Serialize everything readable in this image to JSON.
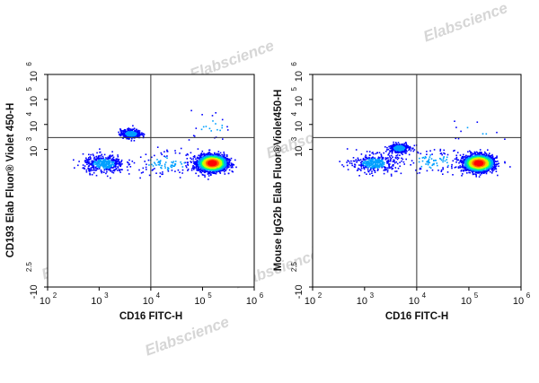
{
  "watermark": "Elabscience",
  "chart_data": [
    {
      "type": "scatter",
      "xlabel": "CD16 FITC-H",
      "ylabel": "CD193 Elab Fluor® Violet 450-H",
      "xscale": "biexponential",
      "yscale": "biexponential",
      "xlim": [
        100,
        1000000
      ],
      "ylim": [
        -316,
        1000000
      ],
      "xticks": [
        {
          "base": "10",
          "exp": "2",
          "value": 100
        },
        {
          "base": "10",
          "exp": "3",
          "value": 1000
        },
        {
          "base": "10",
          "exp": "4",
          "value": 10000
        },
        {
          "base": "10",
          "exp": "5",
          "value": 100000
        },
        {
          "base": "10",
          "exp": "6",
          "value": 1000000
        }
      ],
      "yticks": [
        {
          "base": "10",
          "exp": "6",
          "value": 1000000
        },
        {
          "base": "10",
          "exp": "5",
          "value": 100000
        },
        {
          "base": "10",
          "exp": "4",
          "value": 10000
        },
        {
          "base": "10",
          "exp": "3",
          "value": 1000
        },
        {
          "base": "-10",
          "exp": "2.5",
          "value": -316
        }
      ],
      "quadrant_gate": {
        "x": 10000,
        "y": 3000
      },
      "populations": [
        {
          "x": 150000,
          "y": 300,
          "count": 2200,
          "spread": [
            0.14,
            0.16
          ],
          "note": "dense"
        },
        {
          "x": 4000,
          "y": 4500,
          "count": 360,
          "spread": [
            0.1,
            0.09
          ]
        },
        {
          "x": 1200,
          "y": 280,
          "count": 420,
          "spread": [
            0.2,
            0.18
          ]
        },
        {
          "x": 20000,
          "y": 300,
          "count": 120,
          "spread": [
            0.35,
            0.25
          ]
        },
        {
          "x": 150000,
          "y": 8000,
          "count": 25,
          "spread": [
            0.25,
            0.35
          ]
        }
      ],
      "density_colors": [
        "#0000ff",
        "#00a0ff",
        "#00ff80",
        "#c8ff00",
        "#ffd000",
        "#ff6000",
        "#ff0000"
      ]
    },
    {
      "type": "scatter",
      "xlabel": "CD16 FITC-H",
      "ylabel": "Mouse IgG2b Elab Fluor®Violet450-H",
      "xscale": "biexponential",
      "yscale": "biexponential",
      "xlim": [
        100,
        1000000
      ],
      "ylim": [
        -316,
        1000000
      ],
      "xticks": [
        {
          "base": "10",
          "exp": "2",
          "value": 100
        },
        {
          "base": "10",
          "exp": "3",
          "value": 1000
        },
        {
          "base": "10",
          "exp": "4",
          "value": 10000
        },
        {
          "base": "10",
          "exp": "5",
          "value": 100000
        },
        {
          "base": "10",
          "exp": "6",
          "value": 1000000
        }
      ],
      "yticks": [
        {
          "base": "10",
          "exp": "6",
          "value": 1000000
        },
        {
          "base": "10",
          "exp": "5",
          "value": 100000
        },
        {
          "base": "10",
          "exp": "4",
          "value": 10000
        },
        {
          "base": "10",
          "exp": "3",
          "value": 1000
        },
        {
          "base": "-10",
          "exp": "2.5",
          "value": -316
        }
      ],
      "quadrant_gate": {
        "x": 10000,
        "y": 3000
      },
      "populations": [
        {
          "x": 150000,
          "y": 300,
          "count": 2200,
          "spread": [
            0.14,
            0.16
          ],
          "note": "dense"
        },
        {
          "x": 4500,
          "y": 1200,
          "count": 300,
          "spread": [
            0.1,
            0.1
          ]
        },
        {
          "x": 1500,
          "y": 300,
          "count": 380,
          "spread": [
            0.22,
            0.18
          ]
        },
        {
          "x": 20000,
          "y": 350,
          "count": 110,
          "spread": [
            0.35,
            0.25
          ]
        },
        {
          "x": 150000,
          "y": 5000,
          "count": 12,
          "spread": [
            0.25,
            0.35
          ]
        }
      ],
      "density_colors": [
        "#0000ff",
        "#00a0ff",
        "#00ff80",
        "#c8ff00",
        "#ffd000",
        "#ff6000",
        "#ff0000"
      ]
    }
  ]
}
